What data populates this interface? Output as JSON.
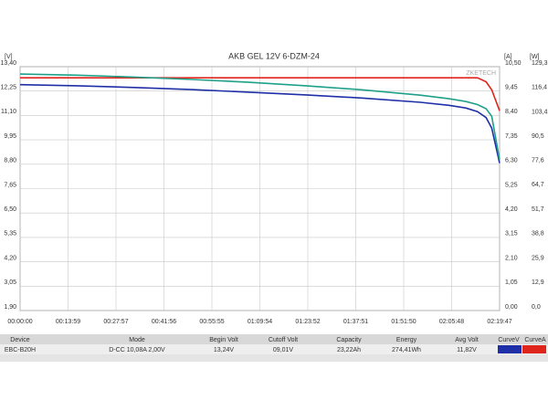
{
  "chart_data": {
    "type": "line",
    "title": "AKB GEL 12V 6-DZM-24",
    "ylabel": "[V]",
    "y2label": "[A]",
    "y3label": "[W]",
    "watermark": "ZKETECH",
    "x": [
      0,
      1000,
      2000,
      3000,
      4000,
      5000,
      6000,
      7000,
      7500,
      7800,
      8000,
      8150,
      8250,
      8387
    ],
    "series": [
      {
        "name": "CurveV",
        "color": "#1f2fa8",
        "axis": "y",
        "values": [
          12.55,
          12.5,
          12.42,
          12.32,
          12.2,
          12.07,
          11.92,
          11.72,
          11.58,
          11.45,
          11.28,
          11.0,
          10.5,
          8.85
        ]
      },
      {
        "name": "CurveA",
        "color": "#e0251c",
        "axis": "y2",
        "values": [
          10.02,
          10.02,
          10.02,
          10.02,
          10.02,
          10.02,
          10.02,
          10.02,
          10.02,
          10.02,
          10.02,
          9.85,
          9.5,
          8.6
        ]
      },
      {
        "color": "#1fa08a",
        "axis": "y3",
        "values": [
          125.4,
          124.8,
          123.8,
          122.5,
          121.0,
          119.2,
          117.0,
          114.2,
          112.3,
          110.8,
          109.2,
          107.0,
          103.0,
          80.0
        ]
      }
    ],
    "xlim": [
      0,
      8387
    ],
    "xticks": [
      {
        "value": 0,
        "label": "00:00:00"
      },
      {
        "value": 839,
        "label": "00:13:59"
      },
      {
        "value": 1677,
        "label": "00:27:57"
      },
      {
        "value": 2516,
        "label": "00:41:56"
      },
      {
        "value": 3355,
        "label": "00:55:55"
      },
      {
        "value": 4194,
        "label": "01:09:54"
      },
      {
        "value": 5032,
        "label": "01:23:52"
      },
      {
        "value": 5871,
        "label": "01:37:51"
      },
      {
        "value": 6710,
        "label": "01:51:50"
      },
      {
        "value": 7548,
        "label": "02:05:48"
      },
      {
        "value": 8387,
        "label": "02:19:47"
      }
    ],
    "ylim": [
      1.9,
      13.4
    ],
    "yticks": [
      {
        "value": 1.9,
        "label": "1,90"
      },
      {
        "value": 3.05,
        "label": "3,05"
      },
      {
        "value": 4.2,
        "label": "4,20"
      },
      {
        "value": 5.35,
        "label": "5,35"
      },
      {
        "value": 6.5,
        "label": "6,50"
      },
      {
        "value": 7.65,
        "label": "7,65"
      },
      {
        "value": 8.8,
        "label": "8,80"
      },
      {
        "value": 9.95,
        "label": "9,95"
      },
      {
        "value": 11.1,
        "label": "11,10"
      },
      {
        "value": 12.25,
        "label": "12,25"
      },
      {
        "value": 13.4,
        "label": "13,40"
      }
    ],
    "y2lim": [
      0,
      10.5
    ],
    "y2ticks": [
      {
        "value": 0,
        "label": "0,00"
      },
      {
        "value": 1.05,
        "label": "1,05"
      },
      {
        "value": 2.1,
        "label": "2,10"
      },
      {
        "value": 3.15,
        "label": "3,15"
      },
      {
        "value": 4.2,
        "label": "4,20"
      },
      {
        "value": 5.25,
        "label": "5,25"
      },
      {
        "value": 6.3,
        "label": "6,30"
      },
      {
        "value": 7.35,
        "label": "7,35"
      },
      {
        "value": 8.4,
        "label": "8,40"
      },
      {
        "value": 9.45,
        "label": "9,45"
      },
      {
        "value": 10.5,
        "label": "10,50"
      }
    ],
    "y3lim": [
      0,
      129.3
    ],
    "y3ticks": [
      {
        "value": 0,
        "label": "0,0"
      },
      {
        "value": 12.9,
        "label": "12,9"
      },
      {
        "value": 25.9,
        "label": "25,9"
      },
      {
        "value": 38.8,
        "label": "38,8"
      },
      {
        "value": 51.7,
        "label": "51,7"
      },
      {
        "value": 64.7,
        "label": "64,7"
      },
      {
        "value": 77.6,
        "label": "77,6"
      },
      {
        "value": 90.5,
        "label": "90,5"
      },
      {
        "value": 103.4,
        "label": "103,4"
      },
      {
        "value": 116.4,
        "label": "116,4"
      },
      {
        "value": 129.3,
        "label": "129,3"
      }
    ],
    "grid": true
  },
  "table": {
    "headers": [
      "Device",
      "Mode",
      "Begin Volt",
      "Cutoff Volt",
      "Capacity",
      "Energy",
      "Avg Volt"
    ],
    "rows": [
      [
        "EBC-B20H",
        "D-CC 10,08A 2,00V",
        "13,24V",
        "09,01V",
        "23,22Ah",
        "274,41Wh",
        "11,82V"
      ]
    ]
  }
}
